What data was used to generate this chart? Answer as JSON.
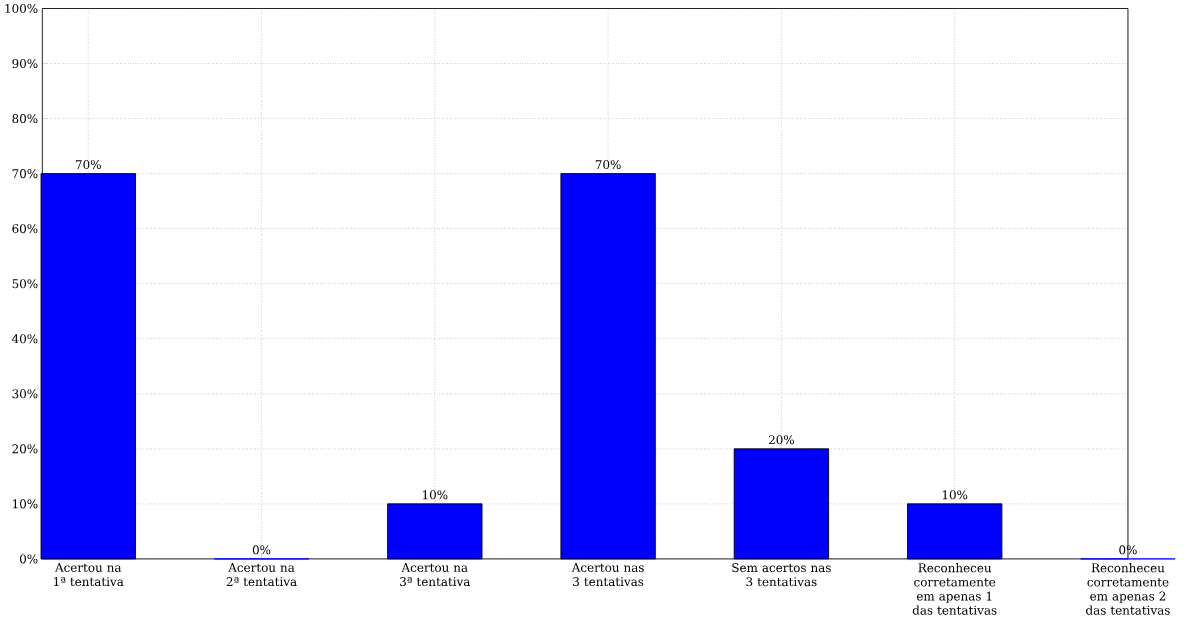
{
  "chart_data": {
    "type": "bar",
    "categories": [
      "Acertou na 1ª tentativa",
      "Acertou na 2ª tentativa",
      "Acertou na 3ª tentativa",
      "Acertou nas 3 tentativas",
      "Sem acertos nas 3 tentativas",
      "Reconheceu corretamente em apenas 1 das tentativas",
      "Reconheceu corretamente em apenas 2 das tentativas"
    ],
    "values": [
      70,
      0,
      10,
      70,
      20,
      10,
      0
    ],
    "value_labels": [
      "70%",
      "0%",
      "10%",
      "70%",
      "20%",
      "10%",
      "0%"
    ],
    "color": "#0000ff",
    "ylim": [
      0,
      100
    ],
    "yticks": [
      {
        "value": 0,
        "label": "0%"
      },
      {
        "value": 10,
        "label": "10%"
      },
      {
        "value": 20,
        "label": "20%"
      },
      {
        "value": 30,
        "label": "30%"
      },
      {
        "value": 40,
        "label": "40%"
      },
      {
        "value": 50,
        "label": "50%"
      },
      {
        "value": 60,
        "label": "60%"
      },
      {
        "value": 70,
        "label": "70%"
      },
      {
        "value": 80,
        "label": "80%"
      },
      {
        "value": 90,
        "label": "90%"
      },
      {
        "value": 100,
        "label": "100%"
      }
    ],
    "grid": true
  }
}
